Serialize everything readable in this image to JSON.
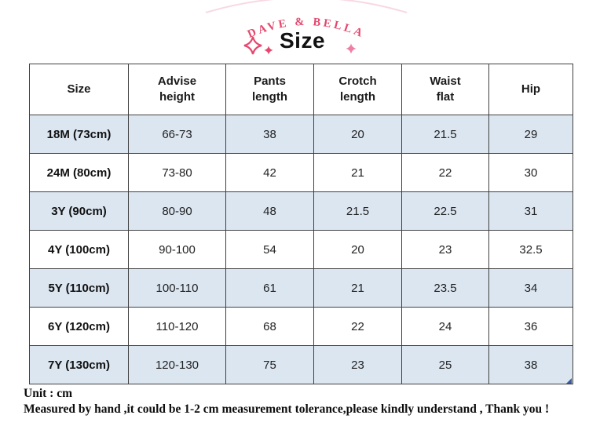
{
  "header": {
    "brand": "DAVE & BELLA",
    "title": "Size"
  },
  "icons": {
    "left_large": "sparkle-icon",
    "left_small": "sparkle-icon",
    "right_small": "sparkle-icon"
  },
  "table": {
    "columns": [
      "Size",
      "Advise\nheight",
      "Pants\nlength",
      "Crotch\nlength",
      "Waist\nflat",
      "Hip"
    ],
    "rows": [
      [
        "18M (73cm)",
        "66-73",
        "38",
        "20",
        "21.5",
        "29"
      ],
      [
        "24M (80cm)",
        "73-80",
        "42",
        "21",
        "22",
        "30"
      ],
      [
        "3Y (90cm)",
        "80-90",
        "48",
        "21.5",
        "22.5",
        "31"
      ],
      [
        "4Y (100cm)",
        "90-100",
        "54",
        "20",
        "23",
        "32.5"
      ],
      [
        "5Y (110cm)",
        "100-110",
        "61",
        "21",
        "23.5",
        "34"
      ],
      [
        "6Y (120cm)",
        "110-120",
        "68",
        "22",
        "24",
        "36"
      ],
      [
        "7Y (130cm)",
        "120-130",
        "75",
        "23",
        "25",
        "38"
      ]
    ]
  },
  "footer": {
    "unit": "Unit : cm",
    "note": "Measured by hand ,it could be 1-2 cm measurement tolerance,please kindly understand , Thank you !"
  },
  "colors": {
    "brand_pink": "#e5476d",
    "light_pink": "#ee7fa6",
    "faint_arc_pink": "#f5c3d2",
    "row_highlight_blue": "#dce6f1",
    "table_border": "#404040"
  }
}
